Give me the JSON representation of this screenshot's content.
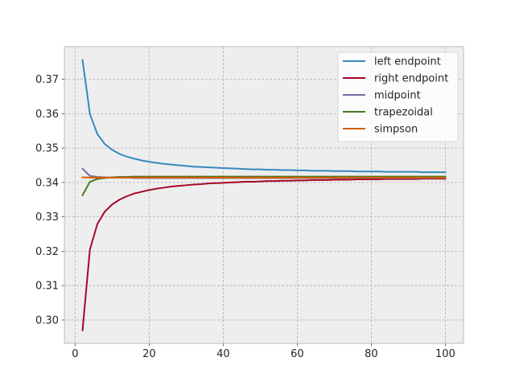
{
  "chart_data": {
    "type": "line",
    "title": "",
    "xlabel": "",
    "ylabel": "",
    "xlim": [
      -2.9,
      104.9
    ],
    "ylim": [
      0.2932,
      0.3795
    ],
    "xticks": [
      0,
      20,
      40,
      60,
      80,
      100
    ],
    "xtick_labels": [
      "0",
      "20",
      "40",
      "60",
      "80",
      "100"
    ],
    "yticks": [
      0.3,
      0.31,
      0.32,
      0.33,
      0.34,
      0.35,
      0.36,
      0.37
    ],
    "ytick_labels": [
      "0.30",
      "0.31",
      "0.32",
      "0.33",
      "0.34",
      "0.35",
      "0.36",
      "0.37"
    ],
    "grid": true,
    "legend_position": "top-right",
    "x": [
      2,
      4,
      6,
      8,
      10,
      12,
      14,
      16,
      18,
      20,
      22,
      24,
      26,
      28,
      30,
      32,
      34,
      36,
      38,
      40,
      42,
      44,
      46,
      48,
      50,
      52,
      54,
      56,
      58,
      60,
      62,
      64,
      66,
      68,
      70,
      72,
      74,
      76,
      78,
      80,
      82,
      84,
      86,
      88,
      90,
      92,
      94,
      96,
      98,
      100
    ],
    "series": [
      {
        "name": "left endpoint",
        "color": "#348abd",
        "values": [
          0.3756,
          0.3599,
          0.3541,
          0.3512,
          0.3495,
          0.3483,
          0.3475,
          0.3469,
          0.3464,
          0.346,
          0.3457,
          0.3454,
          0.3452,
          0.345,
          0.3448,
          0.3446,
          0.3445,
          0.3444,
          0.3443,
          0.3442,
          0.3441,
          0.344,
          0.3439,
          0.3438,
          0.3438,
          0.3437,
          0.3437,
          0.3436,
          0.3436,
          0.3435,
          0.3435,
          0.3434,
          0.3434,
          0.3434,
          0.3433,
          0.3433,
          0.3433,
          0.3432,
          0.3432,
          0.3432,
          0.3432,
          0.3431,
          0.3431,
          0.3431,
          0.3431,
          0.3431,
          0.343,
          0.343,
          0.343,
          0.343
        ]
      },
      {
        "name": "right endpoint",
        "color": "#a60628",
        "values": [
          0.297,
          0.3205,
          0.3279,
          0.3315,
          0.3336,
          0.335,
          0.336,
          0.3368,
          0.3373,
          0.3378,
          0.3382,
          0.3385,
          0.3388,
          0.339,
          0.3392,
          0.3394,
          0.3395,
          0.3397,
          0.3398,
          0.3399,
          0.34,
          0.3401,
          0.3402,
          0.3402,
          0.3403,
          0.3404,
          0.3404,
          0.3405,
          0.3405,
          0.3406,
          0.3406,
          0.3407,
          0.3407,
          0.3407,
          0.3408,
          0.3408,
          0.3408,
          0.3409,
          0.3409,
          0.3409,
          0.3409,
          0.341,
          0.341,
          0.341,
          0.341,
          0.341,
          0.3411,
          0.3411,
          0.3411,
          0.3411
        ]
      },
      {
        "name": "midpoint",
        "color": "#7a68a6",
        "values": [
          0.344,
          0.3419,
          0.3416,
          0.3415,
          0.3414,
          0.3414,
          0.3414,
          0.3413,
          0.3413,
          0.3413,
          0.3413,
          0.3413,
          0.3413,
          0.3413,
          0.3413,
          0.3413,
          0.3413,
          0.3413,
          0.3413,
          0.3413,
          0.3413,
          0.3413,
          0.3413,
          0.3413,
          0.3413,
          0.3413,
          0.3413,
          0.3413,
          0.3413,
          0.3413,
          0.3413,
          0.3413,
          0.3413,
          0.3413,
          0.3413,
          0.3413,
          0.3413,
          0.3413,
          0.3413,
          0.3413,
          0.3413,
          0.3413,
          0.3413,
          0.3413,
          0.3413,
          0.3413,
          0.3413,
          0.3413,
          0.3413,
          0.3413
        ]
      },
      {
        "name": "trapezoidal",
        "color": "#467821",
        "values": [
          0.3363,
          0.3402,
          0.341,
          0.3413,
          0.3415,
          0.3416,
          0.3416,
          0.3417,
          0.3417,
          0.3417,
          0.3417,
          0.3417,
          0.3417,
          0.3417,
          0.3417,
          0.3417,
          0.3417,
          0.3417,
          0.3417,
          0.3417,
          0.3417,
          0.3417,
          0.3417,
          0.3417,
          0.3417,
          0.3417,
          0.3417,
          0.3417,
          0.3417,
          0.3417,
          0.3417,
          0.3417,
          0.3417,
          0.3417,
          0.3417,
          0.3417,
          0.3417,
          0.3417,
          0.3417,
          0.3417,
          0.3417,
          0.3417,
          0.3417,
          0.3417,
          0.3417,
          0.3417,
          0.3417,
          0.3417,
          0.3417,
          0.3417
        ]
      },
      {
        "name": "simpson",
        "color": "#d55e00",
        "values": [
          0.3415,
          0.3414,
          0.3414,
          0.3414,
          0.3414,
          0.3414,
          0.3414,
          0.3414,
          0.3414,
          0.3414,
          0.3414,
          0.3414,
          0.3414,
          0.3414,
          0.3414,
          0.3414,
          0.3414,
          0.3414,
          0.3414,
          0.3414,
          0.3414,
          0.3414,
          0.3414,
          0.3414,
          0.3414,
          0.3414,
          0.3414,
          0.3414,
          0.3414,
          0.3414,
          0.3414,
          0.3414,
          0.3414,
          0.3414,
          0.3414,
          0.3414,
          0.3414,
          0.3414,
          0.3414,
          0.3414,
          0.3414,
          0.3414,
          0.3414,
          0.3414,
          0.3414,
          0.3414,
          0.3414,
          0.3414,
          0.3414,
          0.3414
        ]
      }
    ]
  },
  "style": {
    "figure_background": "#ffffff",
    "axes_background": "#eeeeee",
    "grid_color": "#b2b2b2",
    "spine_color": "#bcbcbc",
    "legend_background": "#ffffff",
    "legend_border": "#cccccc"
  }
}
